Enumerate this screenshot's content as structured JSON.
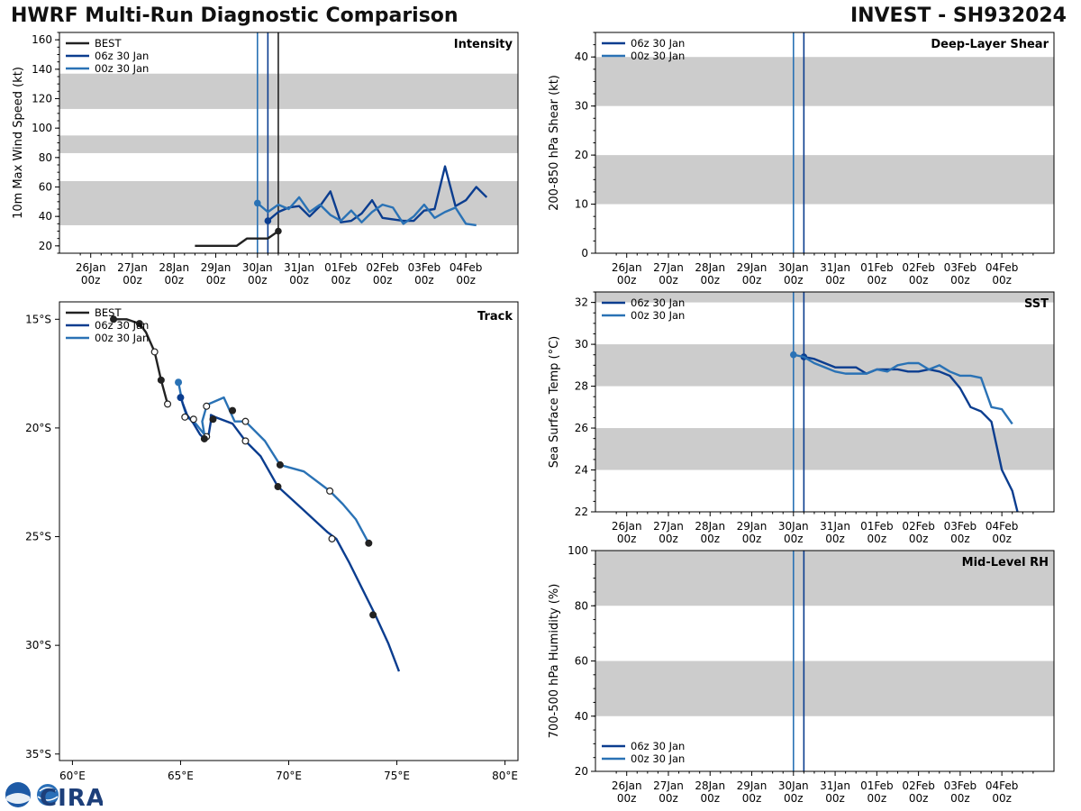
{
  "header": {
    "title": "HWRF Multi-Run Diagnostic Comparison",
    "storm": "INVEST - SH932024"
  },
  "logo": {
    "noaa": "NOAA",
    "cira": "CIRA"
  },
  "colors": {
    "best": "#222222",
    "run06": "#0b3d8f",
    "run00": "#2a72b5",
    "band": "#cccccc",
    "vline00": "#2a72b5",
    "vline06": "#0b3d8f",
    "vlineBest": "#222222"
  },
  "chart_data": [
    {
      "id": "intensity",
      "type": "line",
      "title": "Intensity",
      "ylabel": "10m Max Wind Speed (kt)",
      "xlim": [
        "2024-01-25 06",
        "2024-02-05 06"
      ],
      "ylim": [
        15,
        165
      ],
      "yticks": [
        20,
        40,
        60,
        80,
        100,
        120,
        140,
        160
      ],
      "xtick_labels": [
        [
          "26Jan",
          "00z"
        ],
        [
          "27Jan",
          "00z"
        ],
        [
          "28Jan",
          "00z"
        ],
        [
          "29Jan",
          "00z"
        ],
        [
          "30Jan",
          "00z"
        ],
        [
          "31Jan",
          "00z"
        ],
        [
          "01Feb",
          "00z"
        ],
        [
          "02Feb",
          "00z"
        ],
        [
          "03Feb",
          "00z"
        ],
        [
          "04Feb",
          "00z"
        ]
      ],
      "bands": [
        [
          34,
          64
        ],
        [
          83,
          95
        ],
        [
          113,
          137
        ]
      ],
      "vlines": [
        {
          "x": "2024-01-30 00",
          "color_key": "vline00"
        },
        {
          "x": "2024-01-30 06",
          "color_key": "vline06"
        },
        {
          "x": "2024-01-30 12",
          "color_key": "vlineBest"
        }
      ],
      "legend": {
        "position": "top-left",
        "entries": [
          "BEST",
          "06z 30 Jan",
          "00z 30 Jan"
        ]
      },
      "series": [
        {
          "name": "BEST",
          "color_key": "best",
          "end_marker": true,
          "x": [
            "2024-01-28 12",
            "2024-01-28 18",
            "2024-01-29 00",
            "2024-01-29 06",
            "2024-01-29 12",
            "2024-01-29 18",
            "2024-01-30 00",
            "2024-01-30 06",
            "2024-01-30 12"
          ],
          "y": [
            20,
            20,
            20,
            20,
            20,
            25,
            25,
            25,
            30
          ]
        },
        {
          "name": "06z 30 Jan",
          "color_key": "run06",
          "start_marker": true,
          "x": [
            "2024-01-30 06",
            "2024-01-30 12",
            "2024-01-30 18",
            "2024-01-31 00",
            "2024-01-31 06",
            "2024-01-31 12",
            "2024-01-31 18",
            "2024-02-01 00",
            "2024-02-01 06",
            "2024-02-01 12",
            "2024-02-01 18",
            "2024-02-02 00",
            "2024-02-02 06",
            "2024-02-02 12",
            "2024-02-02 18",
            "2024-02-03 00",
            "2024-02-03 06",
            "2024-02-03 12",
            "2024-02-03 18",
            "2024-02-04 00",
            "2024-02-04 06",
            "2024-02-04 12"
          ],
          "y": [
            37,
            43,
            46,
            47,
            40,
            47,
            57,
            36,
            37,
            42,
            51,
            39,
            38,
            37,
            37,
            44,
            45,
            74,
            47,
            51,
            60,
            53
          ]
        },
        {
          "name": "00z 30 Jan",
          "color_key": "run00",
          "start_marker": true,
          "x": [
            "2024-01-30 00",
            "2024-01-30 06",
            "2024-01-30 12",
            "2024-01-30 18",
            "2024-01-31 00",
            "2024-01-31 06",
            "2024-01-31 12",
            "2024-01-31 18",
            "2024-02-01 00",
            "2024-02-01 06",
            "2024-02-01 12",
            "2024-02-01 18",
            "2024-02-02 00",
            "2024-02-02 06",
            "2024-02-02 12",
            "2024-02-02 18",
            "2024-02-03 00",
            "2024-02-03 06",
            "2024-02-03 12",
            "2024-02-03 18",
            "2024-02-04 00",
            "2024-02-04 06",
            "2024-02-04 12"
          ],
          "y": [
            49,
            43,
            48,
            45,
            53,
            43,
            48,
            41,
            37,
            44,
            36,
            43,
            48,
            46,
            35,
            40,
            48,
            39,
            43,
            46,
            35,
            34,
            null
          ]
        }
      ]
    },
    {
      "id": "shear",
      "type": "line",
      "title": "Deep-Layer Shear",
      "ylabel": "200-850 hPa Shear (kt)",
      "xlim": [
        "2024-01-25 06",
        "2024-02-05 06"
      ],
      "ylim": [
        0,
        45
      ],
      "yticks": [
        0,
        10,
        20,
        30,
        40
      ],
      "xtick_labels": [
        [
          "26Jan",
          "00z"
        ],
        [
          "27Jan",
          "00z"
        ],
        [
          "28Jan",
          "00z"
        ],
        [
          "29Jan",
          "00z"
        ],
        [
          "30Jan",
          "00z"
        ],
        [
          "31Jan",
          "00z"
        ],
        [
          "01Feb",
          "00z"
        ],
        [
          "02Feb",
          "00z"
        ],
        [
          "03Feb",
          "00z"
        ],
        [
          "04Feb",
          "00z"
        ]
      ],
      "bands": [
        [
          10,
          20
        ],
        [
          30,
          40
        ]
      ],
      "vlines": [
        {
          "x": "2024-01-30 00",
          "color_key": "vline00"
        },
        {
          "x": "2024-01-30 06",
          "color_key": "vline06"
        }
      ],
      "legend": {
        "position": "top-left",
        "entries": [
          "06z 30 Jan",
          "00z 30 Jan"
        ]
      },
      "series": [
        {
          "name": "06z 30 Jan",
          "color_key": "run06",
          "x": [],
          "y": []
        },
        {
          "name": "00z 30 Jan",
          "color_key": "run00",
          "x": [],
          "y": []
        }
      ]
    },
    {
      "id": "sst",
      "type": "line",
      "title": "SST",
      "ylabel": "Sea Surface Temp (°C)",
      "xlim": [
        "2024-01-25 06",
        "2024-02-05 06"
      ],
      "ylim": [
        22,
        32.5
      ],
      "yticks": [
        22,
        24,
        26,
        28,
        30,
        32
      ],
      "xtick_labels": [
        [
          "26Jan",
          "00z"
        ],
        [
          "27Jan",
          "00z"
        ],
        [
          "28Jan",
          "00z"
        ],
        [
          "29Jan",
          "00z"
        ],
        [
          "30Jan",
          "00z"
        ],
        [
          "31Jan",
          "00z"
        ],
        [
          "01Feb",
          "00z"
        ],
        [
          "02Feb",
          "00z"
        ],
        [
          "03Feb",
          "00z"
        ],
        [
          "04Feb",
          "00z"
        ]
      ],
      "bands": [
        [
          24,
          26
        ],
        [
          28,
          30
        ],
        [
          32,
          33
        ]
      ],
      "vlines": [
        {
          "x": "2024-01-30 00",
          "color_key": "vline00"
        },
        {
          "x": "2024-01-30 06",
          "color_key": "vline06"
        }
      ],
      "legend": {
        "position": "top-left",
        "entries": [
          "06z 30 Jan",
          "00z 30 Jan"
        ]
      },
      "series": [
        {
          "name": "06z 30 Jan",
          "color_key": "run06",
          "start_marker": true,
          "x": [
            "2024-01-30 06",
            "2024-01-30 12",
            "2024-01-30 18",
            "2024-01-31 00",
            "2024-01-31 06",
            "2024-01-31 12",
            "2024-01-31 18",
            "2024-02-01 00",
            "2024-02-01 06",
            "2024-02-01 12",
            "2024-02-01 18",
            "2024-02-02 00",
            "2024-02-02 06",
            "2024-02-02 12",
            "2024-02-02 18",
            "2024-02-03 00",
            "2024-02-03 06",
            "2024-02-03 12",
            "2024-02-03 18",
            "2024-02-04 00",
            "2024-02-04 06",
            "2024-02-04 09"
          ],
          "y": [
            29.4,
            29.3,
            29.1,
            28.9,
            28.9,
            28.9,
            28.6,
            28.8,
            28.8,
            28.8,
            28.7,
            28.7,
            28.8,
            28.7,
            28.5,
            27.9,
            27.0,
            26.8,
            26.3,
            24.0,
            23.0,
            22.0
          ]
        },
        {
          "name": "00z 30 Jan",
          "color_key": "run00",
          "start_marker": true,
          "x": [
            "2024-01-30 00",
            "2024-01-30 06",
            "2024-01-30 12",
            "2024-01-30 18",
            "2024-01-31 00",
            "2024-01-31 06",
            "2024-01-31 12",
            "2024-01-31 18",
            "2024-02-01 00",
            "2024-02-01 06",
            "2024-02-01 12",
            "2024-02-01 18",
            "2024-02-02 00",
            "2024-02-02 06",
            "2024-02-02 12",
            "2024-02-02 18",
            "2024-02-03 00",
            "2024-02-03 06",
            "2024-02-03 12",
            "2024-02-03 18",
            "2024-02-04 00",
            "2024-02-04 06"
          ],
          "y": [
            29.5,
            29.4,
            29.1,
            28.9,
            28.7,
            28.6,
            28.6,
            28.6,
            28.8,
            28.7,
            29.0,
            29.1,
            29.1,
            28.8,
            29.0,
            28.7,
            28.5,
            28.5,
            28.4,
            27.0,
            26.9,
            26.2
          ]
        }
      ]
    },
    {
      "id": "rh",
      "type": "line",
      "title": "Mid-Level RH",
      "ylabel": "700-500 hPa Humidity (%)",
      "xlim": [
        "2024-01-25 06",
        "2024-02-05 06"
      ],
      "ylim": [
        20,
        100
      ],
      "yticks": [
        20,
        40,
        60,
        80,
        100
      ],
      "xtick_labels": [
        [
          "26Jan",
          "00z"
        ],
        [
          "27Jan",
          "00z"
        ],
        [
          "28Jan",
          "00z"
        ],
        [
          "29Jan",
          "00z"
        ],
        [
          "30Jan",
          "00z"
        ],
        [
          "31Jan",
          "00z"
        ],
        [
          "01Feb",
          "00z"
        ],
        [
          "02Feb",
          "00z"
        ],
        [
          "03Feb",
          "00z"
        ],
        [
          "04Feb",
          "00z"
        ]
      ],
      "bands": [
        [
          40,
          60
        ],
        [
          80,
          100
        ]
      ],
      "vlines": [
        {
          "x": "2024-01-30 00",
          "color_key": "vline00"
        },
        {
          "x": "2024-01-30 06",
          "color_key": "vline06"
        }
      ],
      "legend": {
        "position": "bottom-left",
        "entries": [
          "06z 30 Jan",
          "00z 30 Jan"
        ]
      },
      "series": [
        {
          "name": "06z 30 Jan",
          "color_key": "run06",
          "x": [],
          "y": []
        },
        {
          "name": "00z 30 Jan",
          "color_key": "run00",
          "x": [],
          "y": []
        }
      ]
    },
    {
      "id": "track",
      "type": "scatter",
      "title": "Track",
      "xlim": [
        59.4,
        80.6
      ],
      "ylim": [
        -35.3,
        -14.2
      ],
      "xticks": [
        60,
        65,
        70,
        75,
        80
      ],
      "xtick_labels": [
        "60°E",
        "65°E",
        "70°E",
        "75°E",
        "80°E"
      ],
      "yticks": [
        -15,
        -20,
        -25,
        -30,
        -35
      ],
      "ytick_labels": [
        "15°S",
        "20°S",
        "25°S",
        "30°S",
        "35°S"
      ],
      "legend": {
        "position": "top-left",
        "entries": [
          "BEST",
          "06z 30 Jan",
          "00z 30 Jan"
        ]
      },
      "series": [
        {
          "name": "BEST",
          "color_key": "best",
          "end_marker": true,
          "lon": [
            61.9,
            62.5,
            63.1,
            63.4,
            63.8,
            64.1,
            64.4
          ],
          "lat": [
            -15.0,
            -15.0,
            -15.2,
            -15.6,
            -16.5,
            -17.8,
            -18.9
          ],
          "markers": [
            [
              "filled",
              61.9,
              -15.0
            ],
            [
              "filled",
              63.1,
              -15.2
            ],
            [
              "open",
              63.8,
              -16.5
            ],
            [
              "filled",
              64.1,
              -17.8
            ],
            [
              "open",
              64.4,
              -18.9
            ]
          ]
        },
        {
          "name": "06z 30 Jan",
          "color_key": "run06",
          "start_marker": true,
          "lon": [
            65.0,
            65.3,
            65.6,
            65.9,
            66.1,
            66.3,
            66.4,
            66.4,
            66.6,
            67.4,
            68.0,
            68.7,
            69.5,
            70.6,
            71.8,
            72.2,
            72.8,
            73.4,
            74.0,
            74.6,
            75.1
          ],
          "lat": [
            -18.6,
            -19.4,
            -19.8,
            -20.3,
            -20.5,
            -20.3,
            -19.7,
            -19.4,
            -19.5,
            -19.8,
            -20.6,
            -21.3,
            -22.7,
            -23.7,
            -24.8,
            -25.1,
            -26.2,
            -27.4,
            -28.6,
            -29.9,
            -31.2
          ],
          "markers": [
            [
              "open",
              65.6,
              -19.6
            ],
            [
              "filled",
              66.5,
              -19.6
            ],
            [
              "filled",
              66.1,
              -20.5
            ],
            [
              "open",
              68.0,
              -20.6
            ],
            [
              "filled",
              69.5,
              -22.7
            ],
            [
              "open",
              72.0,
              -25.1
            ],
            [
              "filled",
              73.9,
              -28.6
            ]
          ]
        },
        {
          "name": "00z 30 Jan",
          "color_key": "run00",
          "start_marker": true,
          "lon": [
            64.9,
            65.1,
            65.3,
            65.7,
            66.1,
            66.0,
            66.2,
            66.3,
            67.0,
            67.5,
            68.0,
            68.9,
            69.6,
            70.7,
            71.9,
            72.5,
            73.1,
            73.7
          ],
          "lat": [
            -17.9,
            -18.9,
            -19.5,
            -19.8,
            -20.3,
            -19.7,
            -19.0,
            -18.9,
            -18.6,
            -19.7,
            -19.7,
            -20.6,
            -21.7,
            -22.0,
            -22.9,
            -23.5,
            -24.2,
            -25.3
          ],
          "markers": [
            [
              "open",
              65.2,
              -19.5
            ],
            [
              "open",
              66.2,
              -19.0
            ],
            [
              "open",
              66.2,
              -20.4
            ],
            [
              "filled",
              67.4,
              -19.2
            ],
            [
              "open",
              68.0,
              -19.7
            ],
            [
              "filled",
              69.6,
              -21.7
            ],
            [
              "open",
              71.9,
              -22.9
            ],
            [
              "filled",
              73.7,
              -25.3
            ]
          ]
        }
      ]
    }
  ]
}
